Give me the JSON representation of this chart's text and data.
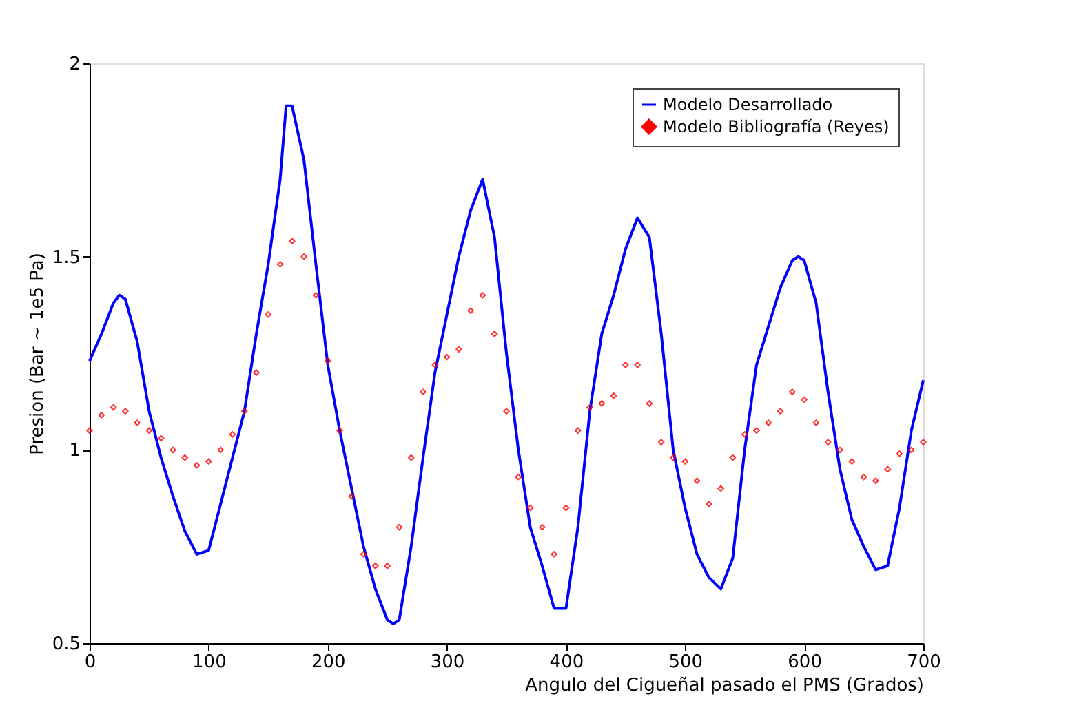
{
  "chart_data": {
    "type": "line",
    "xlabel": "Angulo del Cigueñal pasado el PMS (Grados)",
    "ylabel": "Presion (Bar ~ 1e5 Pa)",
    "xlim": [
      0,
      700
    ],
    "xticks": [
      0,
      100,
      200,
      300,
      400,
      500,
      600,
      700
    ],
    "ylim": [
      0.5,
      2
    ],
    "yticks": [
      0.5,
      {
        "value": 1,
        "label": "1"
      },
      1.5,
      {
        "value": 2,
        "label": "2"
      }
    ],
    "grid": false,
    "legend": "top right",
    "line_style": "solid",
    "series": [
      {
        "name": "Modelo Desarrollado",
        "marker": "none",
        "color": "#0000ff",
        "x": [
          0,
          10,
          20,
          25,
          30,
          40,
          50,
          60,
          70,
          80,
          90,
          100,
          110,
          120,
          130,
          140,
          150,
          160,
          165,
          170,
          180,
          190,
          200,
          210,
          220,
          230,
          240,
          250,
          255,
          260,
          270,
          280,
          290,
          300,
          310,
          320,
          330,
          340,
          350,
          360,
          370,
          380,
          390,
          400,
          410,
          420,
          430,
          440,
          450,
          460,
          470,
          480,
          490,
          500,
          510,
          520,
          530,
          540,
          550,
          560,
          570,
          580,
          590,
          595,
          600,
          610,
          620,
          630,
          640,
          650,
          660,
          670,
          680,
          690,
          700
        ],
        "values": [
          1.23,
          1.3,
          1.38,
          1.4,
          1.39,
          1.28,
          1.1,
          0.98,
          0.88,
          0.79,
          0.73,
          0.74,
          0.86,
          0.98,
          1.1,
          1.3,
          1.48,
          1.7,
          1.89,
          1.89,
          1.75,
          1.48,
          1.22,
          1.05,
          0.9,
          0.75,
          0.64,
          0.56,
          0.55,
          0.56,
          0.75,
          0.98,
          1.2,
          1.35,
          1.5,
          1.62,
          1.7,
          1.55,
          1.25,
          1.0,
          0.8,
          0.7,
          0.59,
          0.59,
          0.8,
          1.1,
          1.3,
          1.4,
          1.52,
          1.6,
          1.55,
          1.3,
          1.0,
          0.85,
          0.73,
          0.67,
          0.64,
          0.72,
          1.0,
          1.22,
          1.32,
          1.42,
          1.49,
          1.5,
          1.49,
          1.38,
          1.15,
          0.95,
          0.82,
          0.75,
          0.69,
          0.7,
          0.85,
          1.05,
          1.18
        ]
      },
      {
        "name": "Modelo Bibliografía (Reyes)",
        "type": "scatter",
        "marker": "diamond",
        "color": "#ff0000",
        "x": [
          0,
          10,
          20,
          30,
          40,
          50,
          60,
          70,
          80,
          90,
          100,
          110,
          120,
          130,
          140,
          150,
          160,
          170,
          180,
          190,
          200,
          210,
          220,
          230,
          240,
          250,
          260,
          270,
          280,
          290,
          300,
          310,
          320,
          330,
          340,
          350,
          360,
          370,
          380,
          390,
          400,
          410,
          420,
          430,
          440,
          450,
          460,
          470,
          480,
          490,
          500,
          510,
          520,
          530,
          540,
          550,
          560,
          570,
          580,
          590,
          600,
          610,
          620,
          630,
          640,
          650,
          660,
          670,
          680,
          690,
          700
        ],
        "values": [
          1.05,
          1.09,
          1.11,
          1.1,
          1.07,
          1.05,
          1.03,
          1.0,
          0.98,
          0.96,
          0.97,
          1.0,
          1.04,
          1.1,
          1.2,
          1.35,
          1.48,
          1.54,
          1.5,
          1.4,
          1.23,
          1.05,
          0.88,
          0.73,
          0.7,
          0.7,
          0.8,
          0.98,
          1.15,
          1.22,
          1.24,
          1.26,
          1.36,
          1.4,
          1.3,
          1.1,
          0.93,
          0.85,
          0.8,
          0.73,
          0.85,
          1.05,
          1.11,
          1.12,
          1.14,
          1.22,
          1.22,
          1.12,
          1.02,
          0.98,
          0.97,
          0.92,
          0.86,
          0.9,
          0.98,
          1.04,
          1.05,
          1.07,
          1.1,
          1.15,
          1.13,
          1.07,
          1.02,
          1.0,
          0.97,
          0.93,
          0.92,
          0.95,
          0.99,
          1.0,
          1.02
        ]
      }
    ]
  }
}
